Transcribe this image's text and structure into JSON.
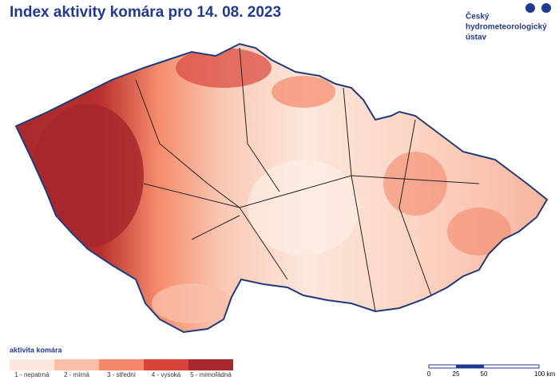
{
  "header": {
    "title": "Index aktivity komára pro 14. 08. 2023",
    "logo_lines": [
      "Český",
      "hydrometeorologický",
      "ústav"
    ]
  },
  "legend": {
    "title": "aktivita komára",
    "items": [
      {
        "label": "1 - nepatrná",
        "color": "#fde7dc"
      },
      {
        "label": "2 - mírná",
        "color": "#f9bfa7"
      },
      {
        "label": "3 - střední",
        "color": "#f4896a"
      },
      {
        "label": "4 - vysoká",
        "color": "#d8443a"
      },
      {
        "label": "5 - mimořádná",
        "color": "#a7272c"
      }
    ]
  },
  "scale_bar": {
    "labels": [
      "0",
      "25",
      "50",
      "100 km"
    ]
  }
}
